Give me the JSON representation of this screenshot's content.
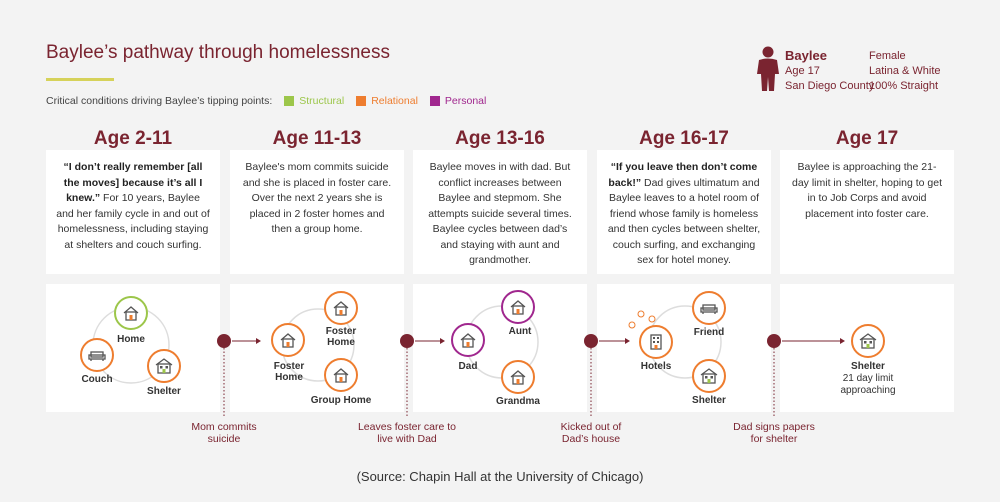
{
  "title": "Baylee’s pathway through homelessness",
  "legend": {
    "intro": "Critical conditions driving Baylee’s tipping points:",
    "items": [
      {
        "label": "Structural",
        "color": "#9cc64a"
      },
      {
        "label": "Relational",
        "color": "#ee7d2f"
      },
      {
        "label": "Personal",
        "color": "#a0278e"
      }
    ]
  },
  "profile": {
    "name": "Baylee",
    "details_left": [
      "Age 17",
      "San Diego County"
    ],
    "details_right": [
      "Female",
      "Latina & White",
      "100% Straight"
    ],
    "icon": "person-icon"
  },
  "stages": [
    {
      "age": "Age 2-11",
      "quote": "“I don’t really remember [all the moves] because it’s all I knew.”",
      "text": " For 10 years, Baylee and her family cycle in and out of homelessness, including staying at shelters and couch surfing.",
      "nodes": [
        {
          "label": "Home",
          "icon": "house-icon",
          "category": "Relational"
        },
        {
          "label": "Couch",
          "icon": "couch-icon",
          "category": "Relational"
        },
        {
          "label": "Shelter",
          "icon": "shelter-icon",
          "category": "Relational"
        }
      ]
    },
    {
      "age": "Age 11-13",
      "quote": "",
      "text": "Baylee's mom commits suicide and she is placed in foster care. Over the next 2 years she is placed in 2 foster homes and then a group home.",
      "nodes": [
        {
          "label": "Foster Home",
          "icon": "house-icon",
          "category": "Relational"
        },
        {
          "label": "Foster Home",
          "icon": "house-icon",
          "category": "Relational"
        },
        {
          "label": "Group Home",
          "icon": "house-icon",
          "category": "Relational"
        }
      ]
    },
    {
      "age": "Age 13-16",
      "quote": "",
      "text": "Baylee moves in with dad. But conflict increases between Baylee and stepmom. She attempts suicide several times. Baylee cycles between dad’s and staying with aunt and grandmother.",
      "nodes": [
        {
          "label": "Dad",
          "icon": "house-icon",
          "category": "Personal"
        },
        {
          "label": "Aunt",
          "icon": "house-icon",
          "category": "Personal"
        },
        {
          "label": "Grandma",
          "icon": "house-icon",
          "category": "Relational"
        }
      ]
    },
    {
      "age": "Age 16-17",
      "quote": "“If you leave then don’t come back!”",
      "text": " Dad gives ultimatum and Baylee leaves to a hotel room of friend whose family is homeless and then cycles between shelter, couch surfing, and exchanging sex for hotel money.",
      "nodes": [
        {
          "label": "Hotels",
          "icon": "hotel-icon",
          "category": "Relational"
        },
        {
          "label": "Friend",
          "icon": "couch-icon",
          "category": "Relational"
        },
        {
          "label": "Shelter",
          "icon": "shelter-icon",
          "category": "Relational"
        }
      ]
    },
    {
      "age": "Age 17",
      "quote": "",
      "text": "Baylee is approaching the 21-day limit in shelter, hoping to get in to Job Corps and avoid placement into foster care.",
      "nodes": [
        {
          "label": "Shelter",
          "sublabel": "21 day limit approaching",
          "icon": "shelter-icon",
          "category": "Relational"
        }
      ]
    }
  ],
  "transitions": [
    "Mom commits suicide",
    "Leaves foster care to live with Dad",
    "Kicked out of Dad’s house",
    "Dad signs papers for shelter"
  ],
  "source": "(Source: Chapin Hall at the University of Chicago)",
  "colors": {
    "accent": "#7a2430",
    "structural": "#9cc64a",
    "relational": "#ee7d2f",
    "personal": "#a0278e"
  }
}
